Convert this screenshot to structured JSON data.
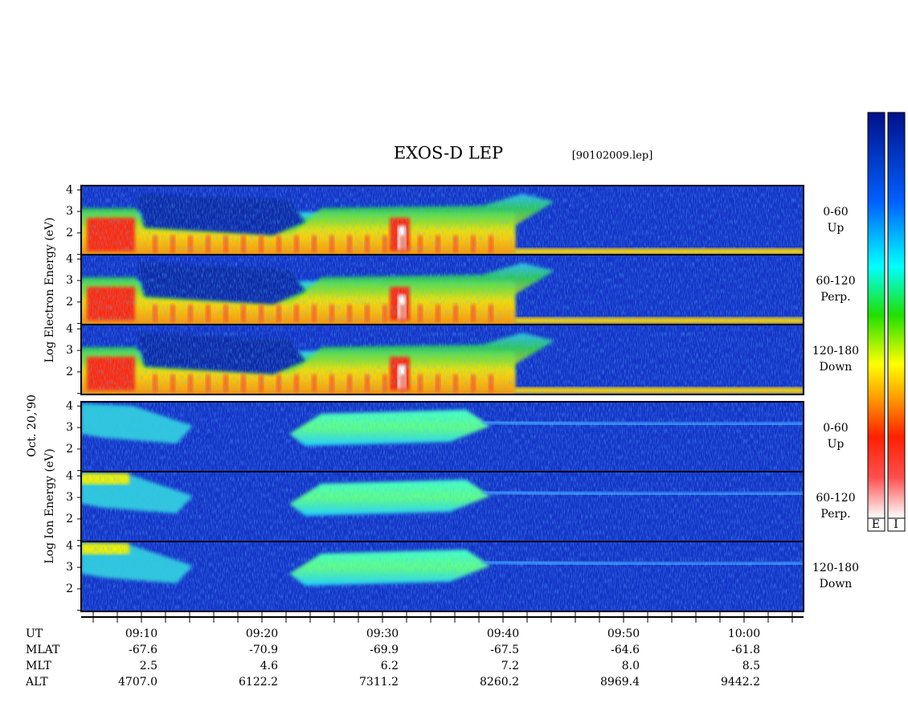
{
  "header": {
    "title": "EXOS-D LEP",
    "file": "[90102009.lep]"
  },
  "left_labels": {
    "electron": "Log Electron Energy (eV)",
    "date": "Oct. 20,'90",
    "ion": "Log Ion Energy (eV)"
  },
  "panels": [
    {
      "angle": "0-60",
      "direction": "Up",
      "yticks": [
        "4",
        "3",
        "2"
      ]
    },
    {
      "angle": "60-120",
      "direction": "Perp.",
      "yticks": [
        "4",
        "3",
        "2"
      ]
    },
    {
      "angle": "120-180",
      "direction": "Down",
      "yticks": [
        "4",
        "3",
        "2"
      ]
    },
    {
      "angle": "0-60",
      "direction": "Up",
      "yticks": [
        "4",
        "3",
        "2"
      ]
    },
    {
      "angle": "60-120",
      "direction": "Perp.",
      "yticks": [
        "4",
        "3",
        "2"
      ]
    },
    {
      "angle": "120-180",
      "direction": "Down",
      "yticks": [
        "4",
        "3",
        "2"
      ]
    }
  ],
  "ephemeris": {
    "names": [
      "UT",
      "MLAT",
      "MLT",
      "ALT"
    ],
    "rows": [
      [
        "09:10",
        "09:20",
        "09:30",
        "09:40",
        "09:50",
        "10:00"
      ],
      [
        "-67.6",
        "-70.9",
        "-69.9",
        "-67.5",
        "-64.6",
        "-61.8"
      ],
      [
        "2.5",
        "4.6",
        "6.2",
        "7.2",
        "8.0",
        "8.5"
      ],
      [
        "4707.0",
        "6122.2",
        "7311.2",
        "8260.2",
        "8969.4",
        "9442.2"
      ]
    ]
  },
  "colorbar_labels": [
    "E",
    "I"
  ]
}
